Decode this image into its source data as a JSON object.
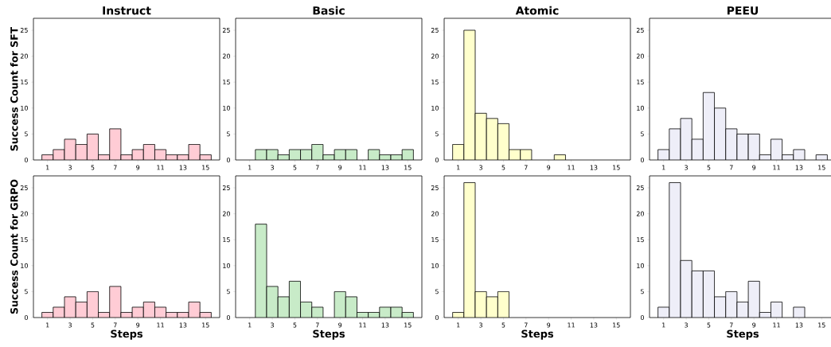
{
  "chart_data": [
    {
      "type": "histogram",
      "title": "Instruct",
      "ylabel": "Success Count for SFT",
      "bins": [
        0.5,
        1.5,
        2.5,
        3.5,
        4.5,
        5.5,
        6.5,
        7.5,
        8.5,
        9.5,
        10.5,
        11.5,
        12.5,
        13.5,
        14.5,
        15.5
      ],
      "values": [
        1,
        2,
        4,
        3,
        5,
        1,
        6,
        1,
        2,
        3,
        2,
        1,
        1,
        3,
        1
      ],
      "color": "#ffccd5",
      "xlim": [
        -0.25,
        16.25
      ],
      "ylim": [
        0,
        27.3
      ],
      "xticks": [
        1,
        3,
        5,
        7,
        9,
        11,
        13,
        15
      ],
      "yticks": [
        0,
        5,
        10,
        15,
        20,
        25
      ]
    },
    {
      "type": "histogram",
      "title": "Basic",
      "bins": [
        0.5,
        1.5,
        2.5,
        3.5,
        4.5,
        5.5,
        6.5,
        7.5,
        8.5,
        9.5,
        10.5,
        11.5,
        12.5,
        13.5,
        14.5,
        15.5
      ],
      "values": [
        0,
        2,
        2,
        1,
        2,
        2,
        3,
        1,
        2,
        2,
        0,
        2,
        1,
        1,
        2
      ],
      "color": "#c8ebc8",
      "xlim": [
        -0.25,
        16.25
      ],
      "ylim": [
        0,
        27.3
      ],
      "xticks": [
        1,
        3,
        5,
        7,
        9,
        11,
        13,
        15
      ],
      "yticks": [
        0,
        5,
        10,
        15,
        20,
        25
      ]
    },
    {
      "type": "histogram",
      "title": "Atomic",
      "bins": [
        0.5,
        1.5,
        2.5,
        3.5,
        4.5,
        5.5,
        6.5,
        7.5,
        8.5,
        9.5,
        10.5,
        11.5,
        12.5,
        13.5,
        14.5,
        15.5
      ],
      "values": [
        3,
        25,
        9,
        8,
        7,
        2,
        2,
        0,
        0,
        1,
        0,
        0,
        0,
        0,
        0
      ],
      "color": "#ffffcc",
      "xlim": [
        -0.25,
        16.25
      ],
      "ylim": [
        0,
        27.3
      ],
      "xticks": [
        1,
        3,
        5,
        7,
        9,
        11,
        13,
        15
      ],
      "yticks": [
        0,
        5,
        10,
        15,
        20,
        25
      ]
    },
    {
      "type": "histogram",
      "title": "PEEU",
      "bins": [
        0.5,
        1.5,
        2.5,
        3.5,
        4.5,
        5.5,
        6.5,
        7.5,
        8.5,
        9.5,
        10.5,
        11.5,
        12.5,
        13.5,
        14.5,
        15.5
      ],
      "values": [
        2,
        6,
        8,
        4,
        13,
        10,
        6,
        5,
        5,
        1,
        4,
        1,
        2,
        0,
        1
      ],
      "color": "#eeeef8",
      "xlim": [
        -0.25,
        16.25
      ],
      "ylim": [
        0,
        27.3
      ],
      "xticks": [
        1,
        3,
        5,
        7,
        9,
        11,
        13,
        15
      ],
      "yticks": [
        0,
        5,
        10,
        15,
        20,
        25
      ]
    },
    {
      "type": "histogram",
      "xlabel": "Steps",
      "ylabel": "Success Count for GRPO",
      "bins": [
        0.5,
        1.5,
        2.5,
        3.5,
        4.5,
        5.5,
        6.5,
        7.5,
        8.5,
        9.5,
        10.5,
        11.5,
        12.5,
        13.5,
        14.5,
        15.5
      ],
      "values": [
        1,
        2,
        4,
        3,
        5,
        1,
        6,
        1,
        2,
        3,
        2,
        1,
        1,
        3,
        1
      ],
      "color": "#ffccd5",
      "xlim": [
        -0.25,
        16.25
      ],
      "ylim": [
        0,
        27.3
      ],
      "xticks": [
        1,
        3,
        5,
        7,
        9,
        11,
        13,
        15
      ],
      "yticks": [
        0,
        5,
        10,
        15,
        20,
        25
      ]
    },
    {
      "type": "histogram",
      "xlabel": "Steps",
      "bins": [
        0.5,
        1.5,
        2.5,
        3.5,
        4.5,
        5.5,
        6.5,
        7.5,
        8.5,
        9.5,
        10.5,
        11.5,
        12.5,
        13.5,
        14.5,
        15.5
      ],
      "values": [
        0,
        18,
        6,
        4,
        7,
        3,
        2,
        0,
        5,
        4,
        1,
        1,
        2,
        2,
        1
      ],
      "color": "#c8ebc8",
      "xlim": [
        -0.25,
        16.25
      ],
      "ylim": [
        0,
        27.3
      ],
      "xticks": [
        1,
        3,
        5,
        7,
        9,
        11,
        13,
        15
      ],
      "yticks": [
        0,
        5,
        10,
        15,
        20,
        25
      ]
    },
    {
      "type": "histogram",
      "xlabel": "Steps",
      "bins": [
        0.5,
        1.5,
        2.5,
        3.5,
        4.5,
        5.5,
        6.5,
        7.5,
        8.5,
        9.5,
        10.5,
        11.5,
        12.5,
        13.5,
        14.5,
        15.5
      ],
      "values": [
        1,
        26,
        5,
        4,
        5,
        0,
        0,
        0,
        0,
        0,
        0,
        0,
        0,
        0,
        0
      ],
      "color": "#ffffcc",
      "xlim": [
        -0.25,
        16.25
      ],
      "ylim": [
        0,
        27.3
      ],
      "xticks": [
        1,
        3,
        5,
        7,
        9,
        11,
        13,
        15
      ],
      "yticks": [
        0,
        5,
        10,
        15,
        20,
        25
      ]
    },
    {
      "type": "histogram",
      "xlabel": "Steps",
      "bins": [
        0.5,
        1.5,
        2.5,
        3.5,
        4.5,
        5.5,
        6.5,
        7.5,
        8.5,
        9.5,
        10.5,
        11.5,
        12.5,
        13.5,
        14.5,
        15.5
      ],
      "values": [
        2,
        26,
        11,
        9,
        9,
        4,
        5,
        3,
        7,
        1,
        3,
        0,
        2,
        0,
        0
      ],
      "color": "#eeeef8",
      "xlim": [
        -0.25,
        16.25
      ],
      "ylim": [
        0,
        27.3
      ],
      "xticks": [
        1,
        3,
        5,
        7,
        9,
        11,
        13,
        15
      ],
      "yticks": [
        0,
        5,
        10,
        15,
        20,
        25
      ]
    }
  ]
}
